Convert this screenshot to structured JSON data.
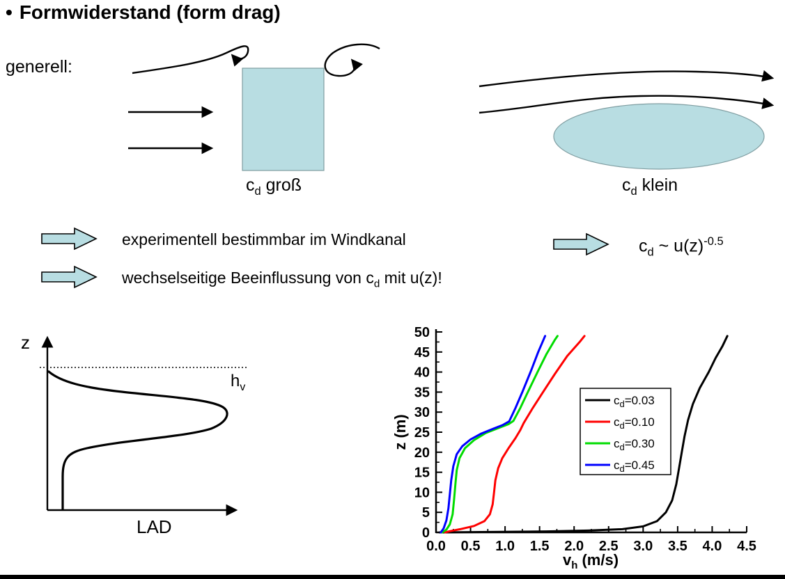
{
  "slide": {
    "bullet": "•",
    "title": "Formwiderstand (form drag)",
    "generell": "generell:"
  },
  "labels": {
    "cd_gross": {
      "pre": "c",
      "sub": "d",
      "post": " groß"
    },
    "cd_klein": {
      "pre": "c",
      "sub": "d",
      "post": " klein"
    },
    "bullet1": "experimentell bestimmbar im Windkanal",
    "bullet2": {
      "pre": "wechselseitige Beeinflussung von c",
      "sub": "d",
      "post": " mit u(z)!"
    },
    "formula": {
      "pre": "c",
      "sub": "d",
      "mid": " ~ u(z)",
      "sup": "-0.5"
    }
  },
  "lad_plot": {
    "y_axis_label": "z",
    "x_axis_label": "LAD",
    "hv": {
      "pre": "h",
      "sub": "v"
    }
  },
  "colors": {
    "shape_fill": "#b8dde2",
    "shape_stroke": "#7f9da1"
  },
  "chart_data": {
    "type": "line",
    "title": "",
    "xlabel": {
      "pre": "v",
      "sub": "h",
      "post": " (m/s)"
    },
    "ylabel": "z (m)",
    "xlim": [
      0,
      4.5
    ],
    "ylim": [
      0,
      50
    ],
    "xticks": [
      0,
      0.5,
      1.0,
      1.5,
      2.0,
      2.5,
      3.0,
      3.5,
      4.0,
      4.5
    ],
    "yticks": [
      0,
      5,
      10,
      15,
      20,
      25,
      30,
      35,
      40,
      45,
      50
    ],
    "grid": false,
    "legend_position": "center-right",
    "series": [
      {
        "label": {
          "pre": "c",
          "sub": "d",
          "post": "=0.03"
        },
        "color": "#000000",
        "points_vz": [
          [
            0.05,
            0
          ],
          [
            0.8,
            0.1
          ],
          [
            1.6,
            0.25
          ],
          [
            2.2,
            0.45
          ],
          [
            2.7,
            0.8
          ],
          [
            3.0,
            1.5
          ],
          [
            3.2,
            2.8
          ],
          [
            3.33,
            5
          ],
          [
            3.42,
            8
          ],
          [
            3.48,
            12
          ],
          [
            3.52,
            16
          ],
          [
            3.56,
            20
          ],
          [
            3.6,
            24
          ],
          [
            3.65,
            28
          ],
          [
            3.72,
            32
          ],
          [
            3.82,
            36
          ],
          [
            3.95,
            40
          ],
          [
            4.05,
            43.5
          ],
          [
            4.15,
            46.5
          ],
          [
            4.22,
            49
          ]
        ]
      },
      {
        "label": {
          "pre": "c",
          "sub": "d",
          "post": "=0.10"
        },
        "color": "#ff0000",
        "points_vz": [
          [
            0.13,
            0
          ],
          [
            0.2,
            0.3
          ],
          [
            0.35,
            0.8
          ],
          [
            0.55,
            1.6
          ],
          [
            0.7,
            2.8
          ],
          [
            0.78,
            4.5
          ],
          [
            0.82,
            7
          ],
          [
            0.84,
            10
          ],
          [
            0.86,
            13
          ],
          [
            0.9,
            16
          ],
          [
            0.96,
            18.5
          ],
          [
            1.05,
            21
          ],
          [
            1.15,
            23.5
          ],
          [
            1.22,
            25.5
          ],
          [
            1.27,
            27.3
          ],
          [
            1.4,
            31
          ],
          [
            1.55,
            35
          ],
          [
            1.72,
            39.5
          ],
          [
            1.9,
            44
          ],
          [
            2.08,
            47.5
          ],
          [
            2.15,
            49
          ]
        ]
      },
      {
        "label": {
          "pre": "c",
          "sub": "d",
          "post": "=0.30"
        },
        "color": "#00dc00",
        "points_vz": [
          [
            0.09,
            0
          ],
          [
            0.15,
            0.7
          ],
          [
            0.2,
            2
          ],
          [
            0.24,
            4.5
          ],
          [
            0.26,
            8
          ],
          [
            0.28,
            12
          ],
          [
            0.3,
            15.5
          ],
          [
            0.34,
            18.5
          ],
          [
            0.42,
            21
          ],
          [
            0.55,
            23
          ],
          [
            0.72,
            24.8
          ],
          [
            0.9,
            26
          ],
          [
            1.05,
            27
          ],
          [
            1.12,
            27.8
          ],
          [
            1.22,
            31
          ],
          [
            1.33,
            35
          ],
          [
            1.47,
            40
          ],
          [
            1.6,
            44.5
          ],
          [
            1.72,
            48
          ],
          [
            1.76,
            49
          ]
        ]
      },
      {
        "label": {
          "pre": "c",
          "sub": "d",
          "post": "=0.45"
        },
        "color": "#0000ff",
        "points_vz": [
          [
            0.07,
            0
          ],
          [
            0.11,
            1
          ],
          [
            0.15,
            3
          ],
          [
            0.18,
            6
          ],
          [
            0.2,
            9.5
          ],
          [
            0.22,
            13
          ],
          [
            0.25,
            16.5
          ],
          [
            0.3,
            19.5
          ],
          [
            0.38,
            21.5
          ],
          [
            0.5,
            23.2
          ],
          [
            0.65,
            24.6
          ],
          [
            0.82,
            25.8
          ],
          [
            0.97,
            26.8
          ],
          [
            1.06,
            27.7
          ],
          [
            1.15,
            31
          ],
          [
            1.25,
            35
          ],
          [
            1.38,
            40.5
          ],
          [
            1.48,
            45
          ],
          [
            1.58,
            49
          ]
        ]
      }
    ]
  }
}
